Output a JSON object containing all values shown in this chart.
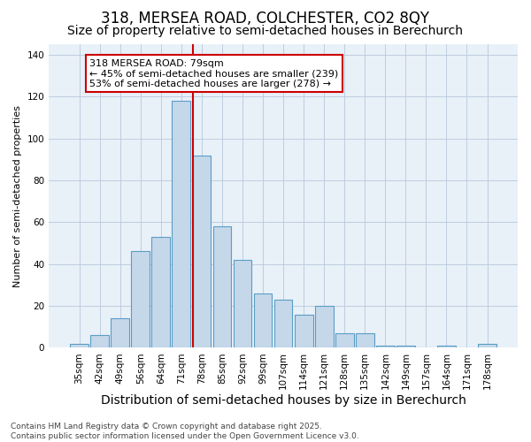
{
  "title1": "318, MERSEA ROAD, COLCHESTER, CO2 8QY",
  "title2": "Size of property relative to semi-detached houses in Berechurch",
  "xlabel": "Distribution of semi-detached houses by size in Berechurch",
  "ylabel": "Number of semi-detached properties",
  "categories": [
    "35sqm",
    "42sqm",
    "49sqm",
    "56sqm",
    "64sqm",
    "71sqm",
    "78sqm",
    "85sqm",
    "92sqm",
    "99sqm",
    "107sqm",
    "114sqm",
    "121sqm",
    "128sqm",
    "135sqm",
    "142sqm",
    "149sqm",
    "157sqm",
    "164sqm",
    "171sqm",
    "178sqm"
  ],
  "values": [
    2,
    6,
    14,
    46,
    53,
    118,
    92,
    58,
    42,
    26,
    23,
    16,
    20,
    7,
    7,
    1,
    1,
    0,
    1,
    0,
    2
  ],
  "bar_color": "#c5d8ea",
  "bar_edge_color": "#5a9dc5",
  "vline_color": "#cc0000",
  "vline_index": 6,
  "annotation_line1": "318 MERSEA ROAD: 79sqm",
  "annotation_line2": "← 45% of semi-detached houses are smaller (239)",
  "annotation_line3": "53% of semi-detached houses are larger (278) →",
  "annotation_box_facecolor": "#ffffff",
  "annotation_box_edgecolor": "#cc0000",
  "ylim": [
    0,
    145
  ],
  "yticks": [
    0,
    20,
    40,
    60,
    80,
    100,
    120,
    140
  ],
  "background_color": "#ffffff",
  "plot_bg_color": "#e8f0f8",
  "grid_color": "#b8c8dc",
  "title_fontsize": 12,
  "subtitle_fontsize": 10,
  "xlabel_fontsize": 10,
  "ylabel_fontsize": 8,
  "tick_fontsize": 7.5,
  "annotation_fontsize": 8,
  "footer_fontsize": 6.5,
  "footer": "Contains HM Land Registry data © Crown copyright and database right 2025.\nContains public sector information licensed under the Open Government Licence v3.0."
}
